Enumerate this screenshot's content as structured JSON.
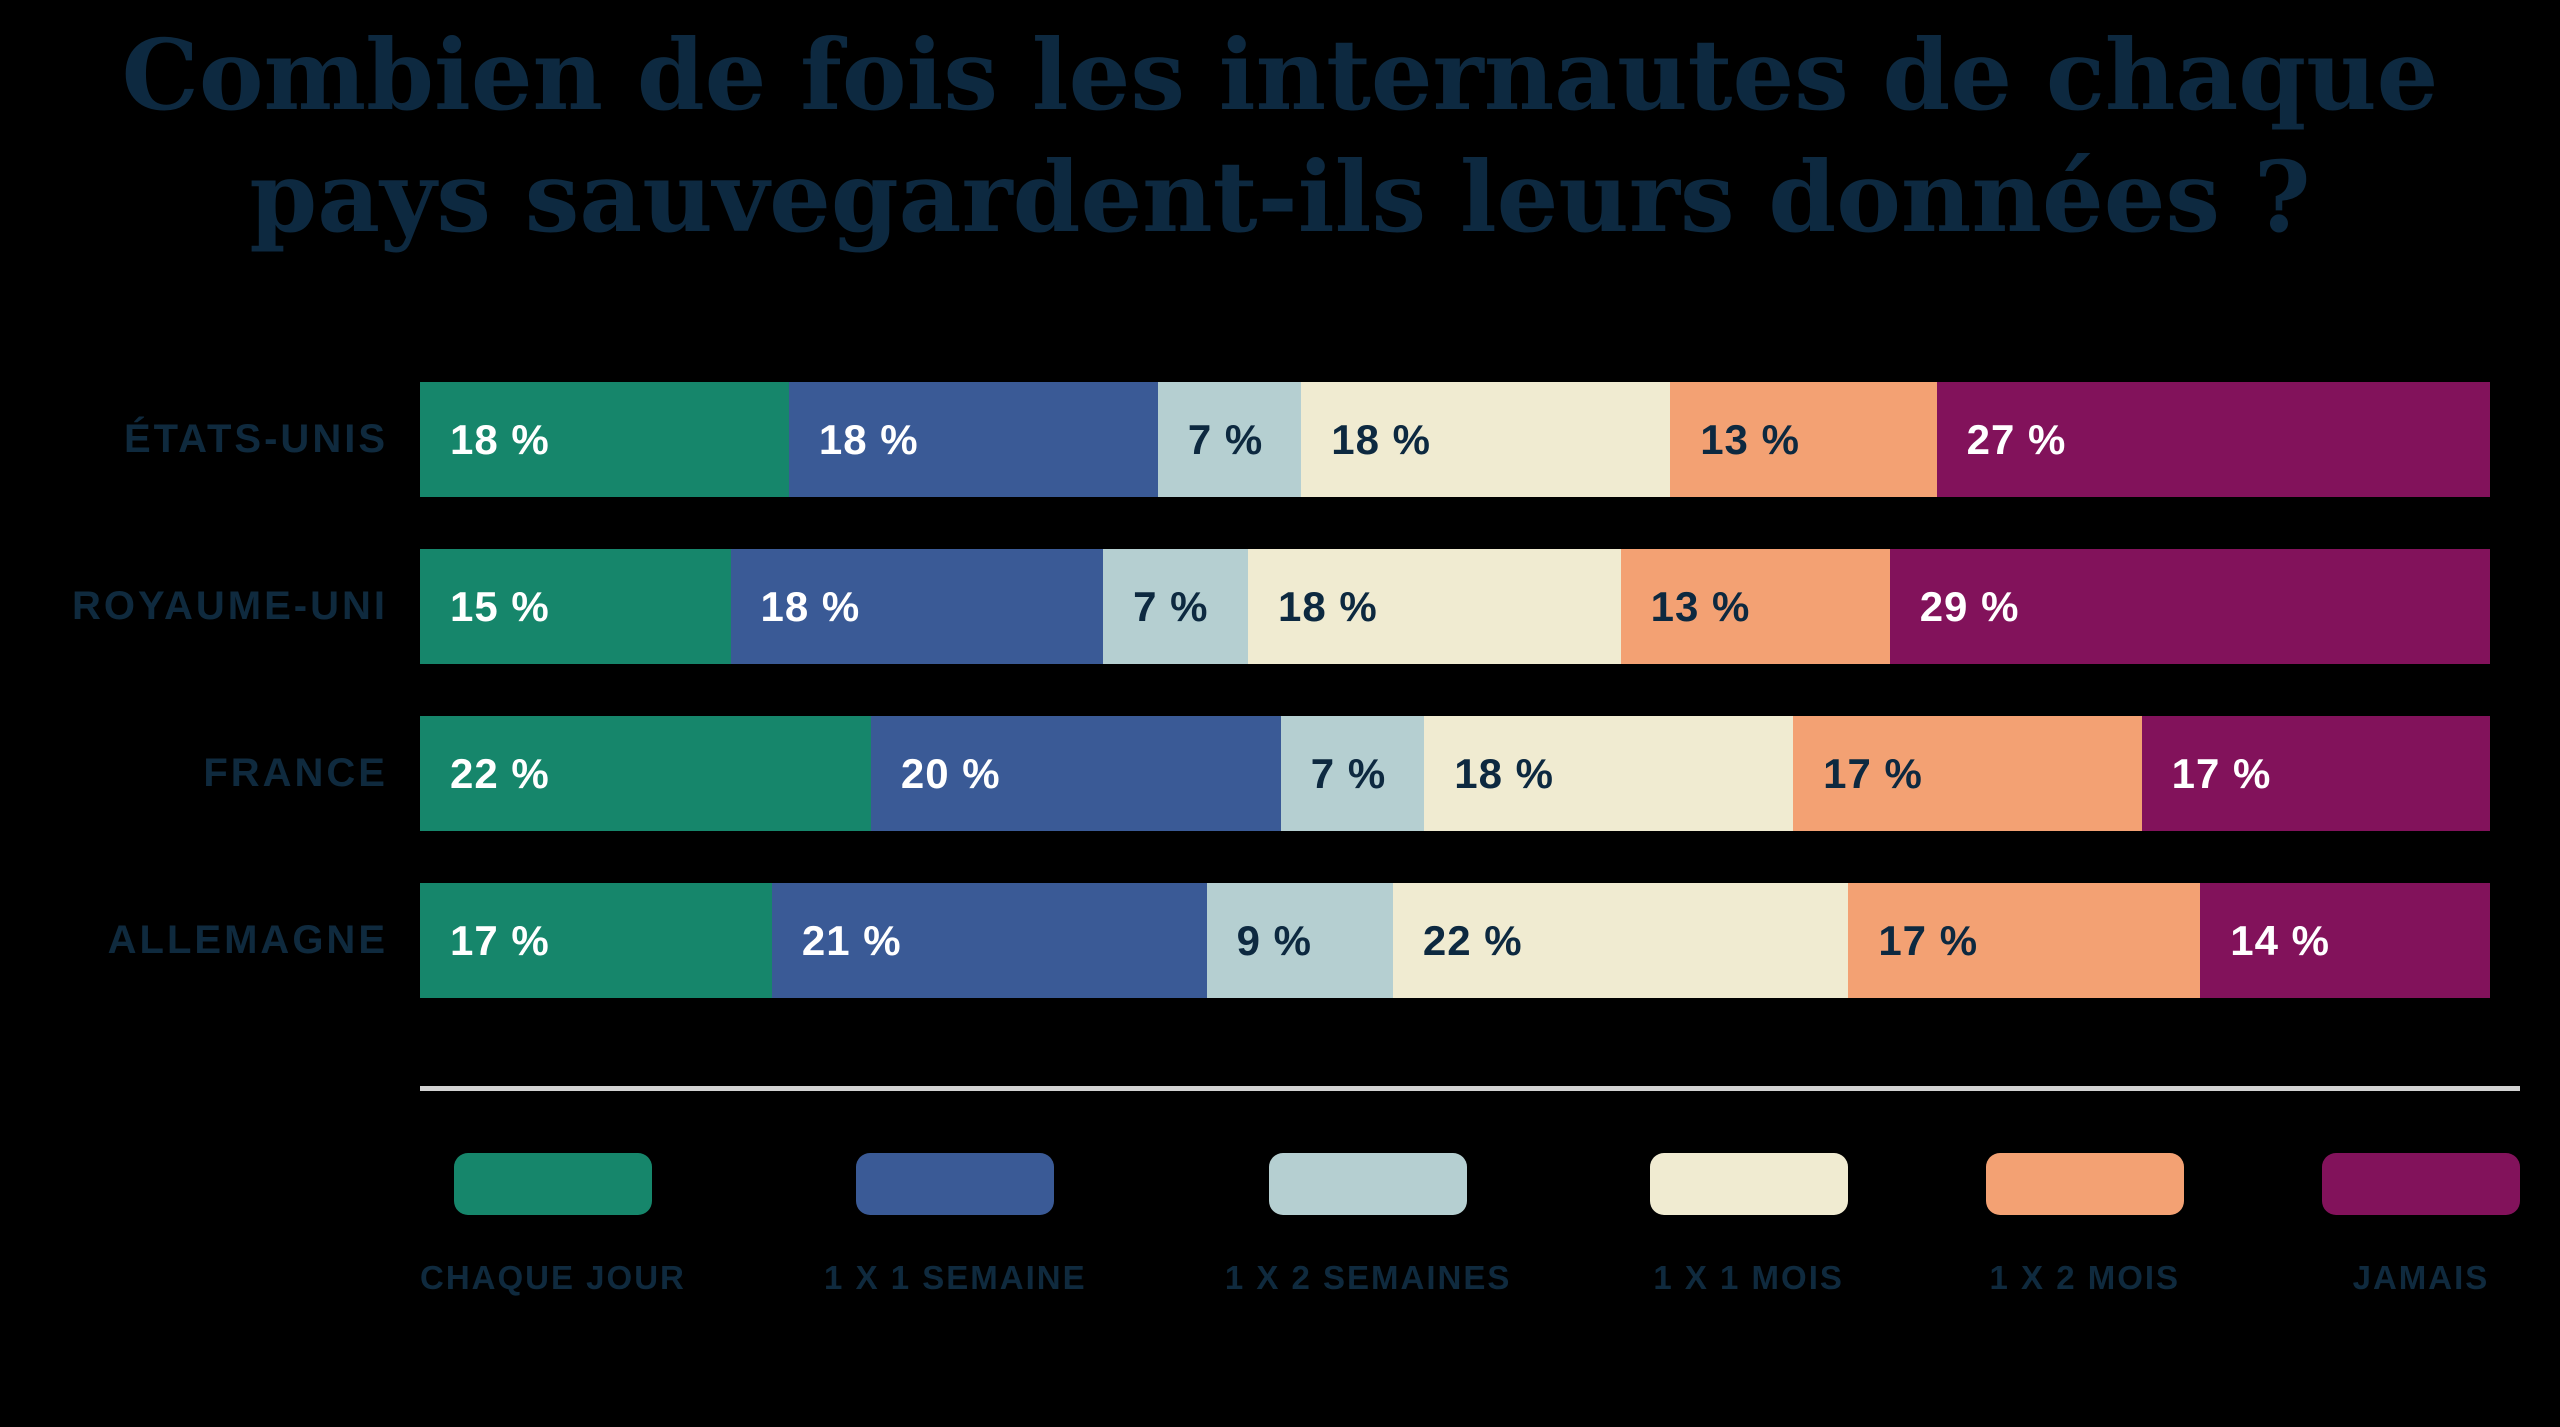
{
  "background": "#000000",
  "title": {
    "line1": "Combien de fois les internautes de chaque",
    "line2": "pays sauvegardent-ils leurs données ?",
    "color": "#0d2940"
  },
  "chart_data": {
    "type": "bar",
    "orientation": "horizontal-stacked",
    "unit": "%",
    "value_label_format": "{v} %",
    "legend_position": "bottom",
    "categories": [
      "ÉTATS-UNIS",
      "ROYAUME-UNI",
      "FRANCE",
      "ALLEMAGNE"
    ],
    "series": [
      {
        "name": "CHAQUE JOUR",
        "color": "#16866b",
        "label_color": "#ffffff",
        "values": [
          18,
          15,
          22,
          17
        ]
      },
      {
        "name": "1 X 1 SEMAINE",
        "color": "#3a5a96",
        "label_color": "#ffffff",
        "values": [
          18,
          18,
          20,
          21
        ]
      },
      {
        "name": "1 X 2 SEMAINES",
        "color": "#b5cfd1",
        "label_color": "#0d2940",
        "values": [
          7,
          7,
          7,
          9
        ]
      },
      {
        "name": "1 X 1 MOIS",
        "color": "#f0ebd1",
        "label_color": "#0d2940",
        "values": [
          18,
          18,
          18,
          22
        ]
      },
      {
        "name": "1 X 2 MOIS",
        "color": "#f3a173",
        "label_color": "#0d2940",
        "values": [
          13,
          13,
          17,
          17
        ]
      },
      {
        "name": "JAMAIS",
        "color": "#82125b",
        "label_color": "#ffffff",
        "values": [
          27,
          29,
          17,
          14
        ]
      }
    ]
  },
  "divider": {
    "color": "#d2d2d2"
  },
  "legend": {
    "label_color": "#0f2a3e"
  },
  "category_label_color": "#0f2a3e"
}
